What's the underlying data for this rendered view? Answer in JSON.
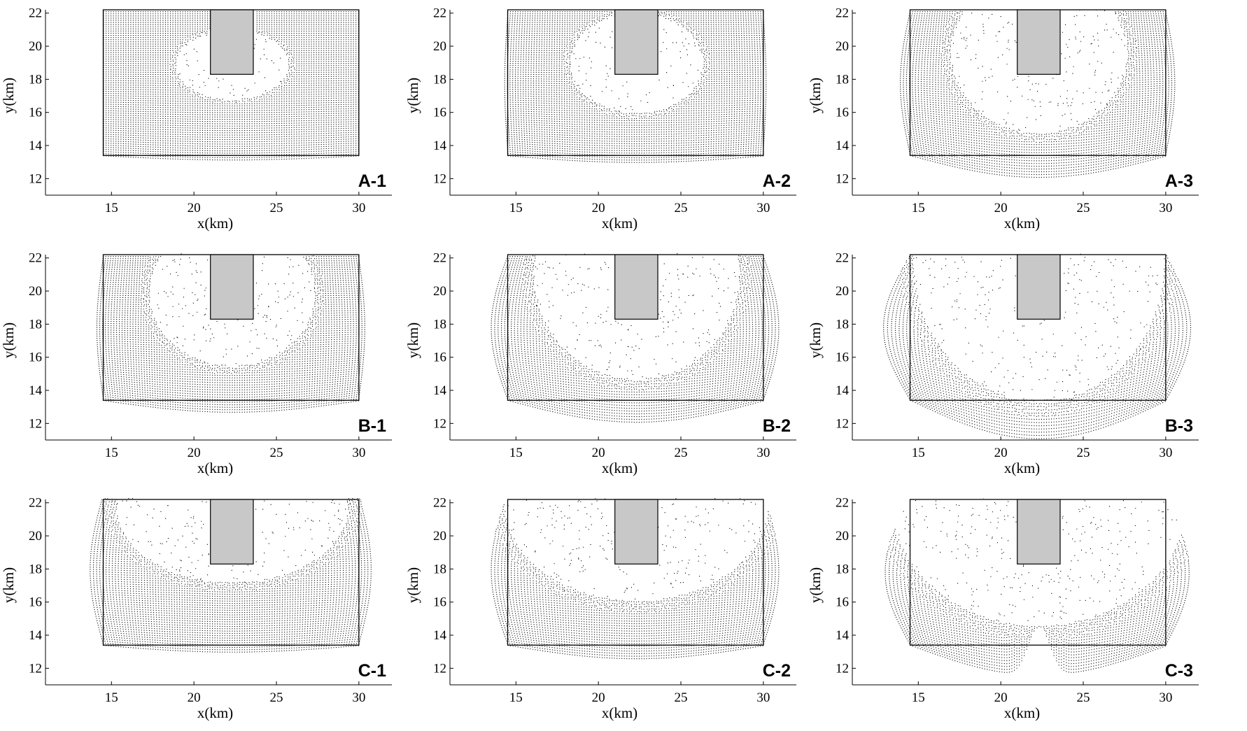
{
  "figure": {
    "rows": [
      "A",
      "B",
      "C"
    ],
    "columns": [
      "1",
      "2",
      "3"
    ]
  },
  "colors": {
    "particles": "#000000",
    "intrusion": "#c8c8c8",
    "axes": "#000000",
    "background": "#ffffff"
  },
  "chart_data": [
    {
      "type": "scatter",
      "id": "A-1",
      "panel_label": "A-1",
      "xlabel": "x(km)",
      "ylabel": "y(km)",
      "xlim": [
        11,
        32
      ],
      "ylim": [
        11,
        22.2
      ],
      "xticks": [
        15,
        20,
        25,
        30
      ],
      "yticks": [
        12,
        14,
        16,
        18,
        20,
        22
      ],
      "domain_box": {
        "x": [
          14.5,
          30
        ],
        "y": [
          13.4,
          22.2
        ]
      },
      "intrusion": {
        "x": [
          21,
          23.6
        ],
        "y": [
          18.3,
          22.2
        ]
      },
      "deformation": {
        "bulge": 0.25,
        "side": 0.0,
        "lift": 0.0,
        "spike": 0.0
      },
      "disturbed_zone": {
        "a": 3.4,
        "b": 2.1,
        "cy": 18.9
      }
    },
    {
      "type": "scatter",
      "id": "A-2",
      "panel_label": "A-2",
      "xlabel": "x(km)",
      "ylabel": "y(km)",
      "xlim": [
        11,
        32
      ],
      "ylim": [
        11,
        22.2
      ],
      "xticks": [
        15,
        20,
        25,
        30
      ],
      "yticks": [
        12,
        14,
        16,
        18,
        20,
        22
      ],
      "domain_box": {
        "x": [
          14.5,
          30
        ],
        "y": [
          13.4,
          22.2
        ]
      },
      "intrusion": {
        "x": [
          21,
          23.6
        ],
        "y": [
          18.3,
          22.2
        ]
      },
      "deformation": {
        "bulge": 0.4,
        "side": 0.2,
        "lift": 0.0,
        "spike": 0.0
      },
      "disturbed_zone": {
        "a": 4.0,
        "b": 3.0,
        "cy": 19.0
      }
    },
    {
      "type": "scatter",
      "id": "A-3",
      "panel_label": "A-3",
      "xlabel": "x(km)",
      "ylabel": "y(km)",
      "xlim": [
        11,
        32
      ],
      "ylim": [
        11,
        22.2
      ],
      "xticks": [
        15,
        20,
        25,
        30
      ],
      "yticks": [
        12,
        14,
        16,
        18,
        20,
        22
      ],
      "domain_box": {
        "x": [
          14.5,
          30
        ],
        "y": [
          13.4,
          22.2
        ]
      },
      "intrusion": {
        "x": [
          21,
          23.6
        ],
        "y": [
          18.3,
          22.2
        ]
      },
      "deformation": {
        "bulge": 1.3,
        "side": 0.6,
        "lift": 0.0,
        "spike": 0.0
      },
      "disturbed_zone": {
        "a": 5.3,
        "b": 4.8,
        "cy": 19.6
      }
    },
    {
      "type": "scatter",
      "id": "B-1",
      "panel_label": "B-1",
      "xlabel": "x(km)",
      "ylabel": "y(km)",
      "xlim": [
        11,
        32
      ],
      "ylim": [
        11,
        22.2
      ],
      "xticks": [
        15,
        20,
        25,
        30
      ],
      "yticks": [
        12,
        14,
        16,
        18,
        20,
        22
      ],
      "domain_box": {
        "x": [
          14.5,
          30
        ],
        "y": [
          13.4,
          22.2
        ]
      },
      "intrusion": {
        "x": [
          21,
          23.6
        ],
        "y": [
          18.3,
          22.2
        ]
      },
      "deformation": {
        "bulge": 0.7,
        "side": 0.4,
        "lift": 0.0,
        "spike": 0.0
      },
      "disturbed_zone": {
        "a": 5.0,
        "b": 4.4,
        "cy": 19.9
      }
    },
    {
      "type": "scatter",
      "id": "B-2",
      "panel_label": "B-2",
      "xlabel": "x(km)",
      "ylabel": "y(km)",
      "xlim": [
        11,
        32
      ],
      "ylim": [
        11,
        22.2
      ],
      "xticks": [
        15,
        20,
        25,
        30
      ],
      "yticks": [
        12,
        14,
        16,
        18,
        20,
        22
      ],
      "domain_box": {
        "x": [
          14.5,
          30
        ],
        "y": [
          13.4,
          22.2
        ]
      },
      "intrusion": {
        "x": [
          21,
          23.6
        ],
        "y": [
          18.3,
          22.2
        ]
      },
      "deformation": {
        "bulge": 1.3,
        "side": 1.0,
        "lift": 0.0,
        "spike": 0.0
      },
      "disturbed_zone": {
        "a": 6.2,
        "b": 6.3,
        "cy": 21.0
      }
    },
    {
      "type": "scatter",
      "id": "B-3",
      "panel_label": "B-3",
      "xlabel": "x(km)",
      "ylabel": "y(km)",
      "xlim": [
        11,
        32
      ],
      "ylim": [
        11,
        22.2
      ],
      "xticks": [
        15,
        20,
        25,
        30
      ],
      "yticks": [
        12,
        14,
        16,
        18,
        20,
        22
      ],
      "domain_box": {
        "x": [
          14.5,
          30
        ],
        "y": [
          13.4,
          22.2
        ]
      },
      "intrusion": {
        "x": [
          21,
          23.6
        ],
        "y": [
          18.3,
          22.2
        ]
      },
      "deformation": {
        "bulge": 2.3,
        "side": 1.6,
        "lift": 0.0,
        "spike": 0.0
      },
      "disturbed_zone": {
        "a": 7.6,
        "b": 8.5,
        "cy": 21.9
      }
    },
    {
      "type": "scatter",
      "id": "C-1",
      "panel_label": "C-1",
      "xlabel": "x(km)",
      "ylabel": "y(km)",
      "xlim": [
        11,
        32
      ],
      "ylim": [
        11,
        22.2
      ],
      "xticks": [
        15,
        20,
        25,
        30
      ],
      "yticks": [
        12,
        14,
        16,
        18,
        20,
        22
      ],
      "domain_box": {
        "x": [
          14.5,
          30
        ],
        "y": [
          13.4,
          22.2
        ]
      },
      "intrusion": {
        "x": [
          21,
          23.6
        ],
        "y": [
          18.3,
          22.2
        ]
      },
      "deformation": {
        "bulge": 0.4,
        "side": 0.8,
        "lift": 0.6,
        "spike": 0.0
      },
      "disturbed_zone": {
        "a": 7.0,
        "b": 4.6,
        "cy": 21.8
      }
    },
    {
      "type": "scatter",
      "id": "C-2",
      "panel_label": "C-2",
      "xlabel": "x(km)",
      "ylabel": "y(km)",
      "xlim": [
        11,
        32
      ],
      "ylim": [
        11,
        22.2
      ],
      "xticks": [
        15,
        20,
        25,
        30
      ],
      "yticks": [
        12,
        14,
        16,
        18,
        20,
        22
      ],
      "domain_box": {
        "x": [
          14.5,
          30
        ],
        "y": [
          13.4,
          22.2
        ]
      },
      "intrusion": {
        "x": [
          21,
          23.6
        ],
        "y": [
          18.3,
          22.2
        ]
      },
      "deformation": {
        "bulge": 0.8,
        "side": 1.0,
        "lift": 0.5,
        "spike": 0.0
      },
      "disturbed_zone": {
        "a": 8.0,
        "b": 6.0,
        "cy": 22.1
      }
    },
    {
      "type": "scatter",
      "id": "C-3",
      "panel_label": "C-3",
      "xlabel": "x(km)",
      "ylabel": "y(km)",
      "xlim": [
        11,
        32
      ],
      "ylim": [
        11,
        22.2
      ],
      "xticks": [
        15,
        20,
        25,
        30
      ],
      "yticks": [
        12,
        14,
        16,
        18,
        20,
        22
      ],
      "domain_box": {
        "x": [
          14.5,
          30
        ],
        "y": [
          13.4,
          22.2
        ]
      },
      "intrusion": {
        "x": [
          21,
          23.6
        ],
        "y": [
          18.3,
          22.2
        ]
      },
      "deformation": {
        "bulge": 1.8,
        "side": 1.5,
        "lift": 0.0,
        "spike": 3.3
      },
      "disturbed_zone": {
        "a": 9.0,
        "b": 7.8,
        "cy": 22.4
      }
    }
  ]
}
